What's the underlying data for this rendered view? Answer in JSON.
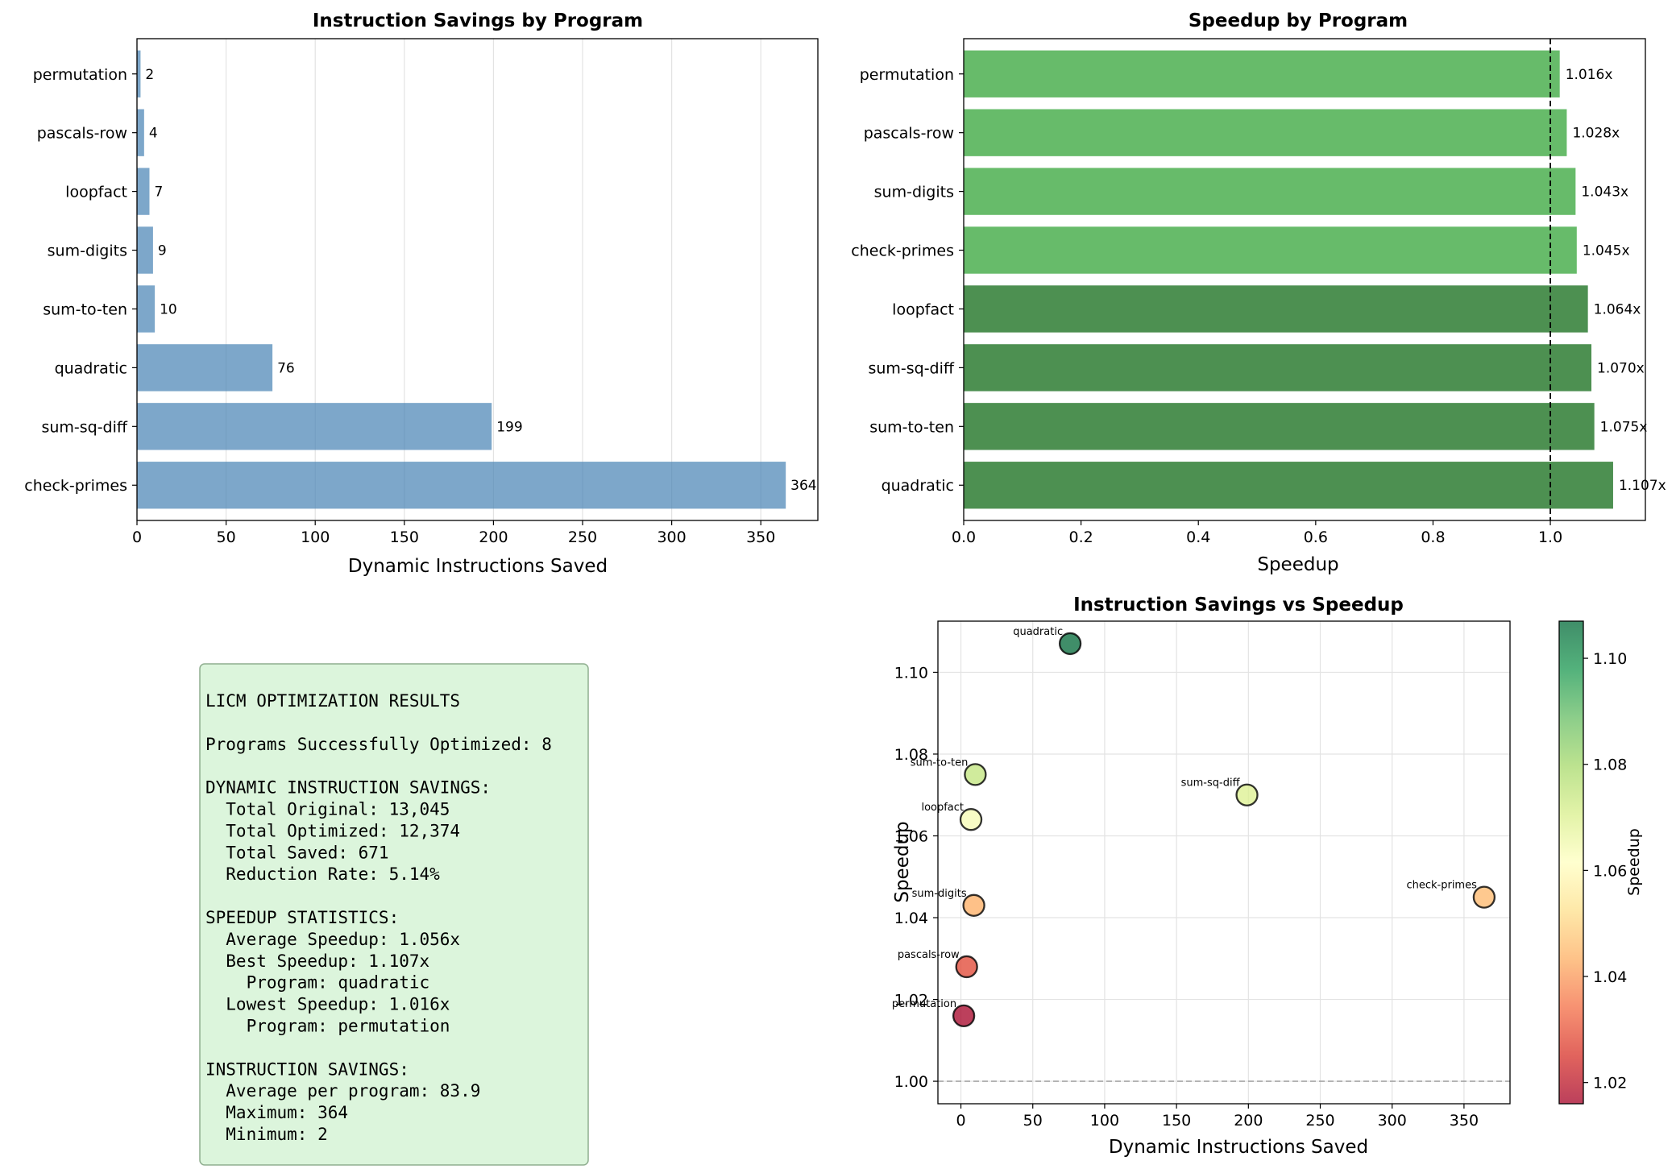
{
  "chart_data": [
    {
      "id": "savings",
      "type": "bar",
      "orientation": "horizontal",
      "title": "Instruction Savings by Program",
      "xlabel": "Dynamic Instructions Saved",
      "ylabel": "",
      "categories": [
        "check-primes",
        "sum-sq-diff",
        "quadratic",
        "sum-to-ten",
        "sum-digits",
        "loopfact",
        "pascals-row",
        "permutation"
      ],
      "values": [
        364,
        199,
        76,
        10,
        9,
        7,
        4,
        2
      ],
      "value_labels": [
        "364",
        "199",
        "76",
        "10",
        "9",
        "7",
        "4",
        "2"
      ],
      "xlim": [
        0,
        382
      ],
      "xticks": [
        0,
        50,
        100,
        150,
        200,
        250,
        300,
        350
      ],
      "grid": "vertical",
      "bar_color": "#4682b4"
    },
    {
      "id": "speedup",
      "type": "bar",
      "orientation": "horizontal",
      "title": "Speedup by Program",
      "xlabel": "Speedup",
      "ylabel": "",
      "categories": [
        "quadratic",
        "sum-to-ten",
        "sum-sq-diff",
        "loopfact",
        "check-primes",
        "sum-digits",
        "pascals-row",
        "permutation"
      ],
      "values": [
        1.107,
        1.075,
        1.07,
        1.064,
        1.045,
        1.043,
        1.028,
        1.016
      ],
      "value_labels": [
        "1.107x",
        "1.075x",
        "1.070x",
        "1.064x",
        "1.045x",
        "1.043x",
        "1.028x",
        "1.016x"
      ],
      "bar_colors": [
        "#2e7d32",
        "#2e7d32",
        "#2e7d32",
        "#2e7d32",
        "#4caf50",
        "#4caf50",
        "#4caf50",
        "#4caf50"
      ],
      "reference_line": 1.0,
      "xlim": [
        0,
        1.162
      ],
      "xticks": [
        "0.0",
        "0.2",
        "0.4",
        "0.6",
        "0.8",
        "1.0"
      ],
      "grid": "none"
    },
    {
      "id": "scatter",
      "type": "scatter",
      "title": "Instruction Savings vs Speedup",
      "xlabel": "Dynamic Instructions Saved",
      "ylabel": "Speedup",
      "points": [
        {
          "label": "quadratic",
          "x": 76,
          "y": 1.107
        },
        {
          "label": "sum-to-ten",
          "x": 10,
          "y": 1.075
        },
        {
          "label": "sum-sq-diff",
          "x": 199,
          "y": 1.07
        },
        {
          "label": "loopfact",
          "x": 7,
          "y": 1.064
        },
        {
          "label": "check-primes",
          "x": 364,
          "y": 1.045
        },
        {
          "label": "sum-digits",
          "x": 9,
          "y": 1.043
        },
        {
          "label": "pascals-row",
          "x": 4,
          "y": 1.028
        },
        {
          "label": "permutation",
          "x": 2,
          "y": 1.016
        }
      ],
      "xlim": [
        -16,
        382
      ],
      "ylim": [
        0.9945,
        1.1125
      ],
      "xticks": [
        0,
        50,
        100,
        150,
        200,
        250,
        300,
        350
      ],
      "yticks": [
        "1.00",
        "1.02",
        "1.04",
        "1.06",
        "1.08",
        "1.10"
      ],
      "reference_line": 1.0,
      "grid": true,
      "colormap": "RdYlGn",
      "colorbar": {
        "label": "Speedup",
        "ticks": [
          "1.02",
          "1.04",
          "1.06",
          "1.08",
          "1.10"
        ],
        "min": 1.016,
        "max": 1.107
      }
    }
  ],
  "summary_box": {
    "lines": [
      "LICM OPTIMIZATION RESULTS",
      "",
      "Programs Successfully Optimized: 8",
      "",
      "DYNAMIC INSTRUCTION SAVINGS:",
      "  Total Original: 13,045",
      "  Total Optimized: 12,374",
      "  Total Saved: 671",
      "  Reduction Rate: 5.14%",
      "",
      "SPEEDUP STATISTICS:",
      "  Average Speedup: 1.056x",
      "  Best Speedup: 1.107x",
      "    Program: quadratic",
      "  Lowest Speedup: 1.016x",
      "    Program: permutation",
      "",
      "INSTRUCTION SAVINGS:",
      "  Average per program: 83.9",
      "  Maximum: 364",
      "  Minimum: 2"
    ],
    "background": "#dcf5dc",
    "border": "#8fae8f"
  }
}
